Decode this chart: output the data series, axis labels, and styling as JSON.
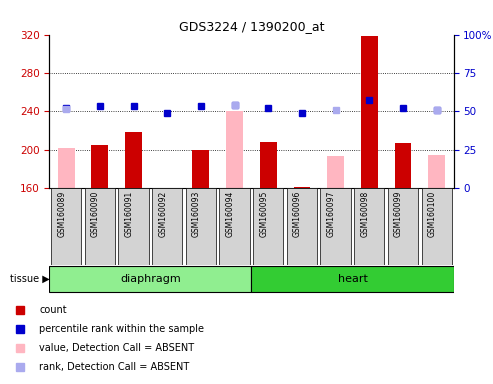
{
  "title": "GDS3224 / 1390200_at",
  "samples": [
    "GSM160089",
    "GSM160090",
    "GSM160091",
    "GSM160092",
    "GSM160093",
    "GSM160094",
    "GSM160095",
    "GSM160096",
    "GSM160097",
    "GSM160098",
    "GSM160099",
    "GSM160100"
  ],
  "groups": [
    {
      "label": "diaphragm",
      "indices": [
        0,
        1,
        2,
        3,
        4,
        5
      ],
      "color": "#90ee90"
    },
    {
      "label": "heart",
      "indices": [
        6,
        7,
        8,
        9,
        10,
        11
      ],
      "color": "#33cc33"
    }
  ],
  "ylim_left": [
    160,
    320
  ],
  "ylim_right": [
    0,
    100
  ],
  "yticks_left": [
    160,
    200,
    240,
    280,
    320
  ],
  "yticks_right": [
    0,
    25,
    50,
    75,
    100
  ],
  "red_bars": [
    null,
    205,
    218,
    null,
    200,
    null,
    208,
    161,
    null,
    318,
    207,
    null
  ],
  "pink_bars": [
    202,
    null,
    null,
    null,
    null,
    240,
    null,
    null,
    193,
    null,
    null,
    195
  ],
  "blue_dark_y": [
    243,
    246,
    246,
    238,
    246,
    247,
    244,
    238,
    null,
    252,
    244,
    241
  ],
  "blue_light_y": [
    242,
    null,
    null,
    null,
    null,
    247,
    null,
    null,
    241,
    null,
    null,
    241
  ],
  "color_red": "#cc0000",
  "color_pink": "#ffb6c1",
  "color_blue_dark": "#0000cc",
  "color_blue_light": "#aaaaee",
  "left_axis_color": "#cc0000",
  "right_axis_color": "#0000cc",
  "baseline": 160,
  "legend_items": [
    {
      "color": "#cc0000",
      "marker": "s",
      "label": "count"
    },
    {
      "color": "#0000cc",
      "marker": "s",
      "label": "percentile rank within the sample"
    },
    {
      "color": "#ffb6c1",
      "marker": "s",
      "label": "value, Detection Call = ABSENT"
    },
    {
      "color": "#aaaaee",
      "marker": "s",
      "label": "rank, Detection Call = ABSENT"
    }
  ]
}
